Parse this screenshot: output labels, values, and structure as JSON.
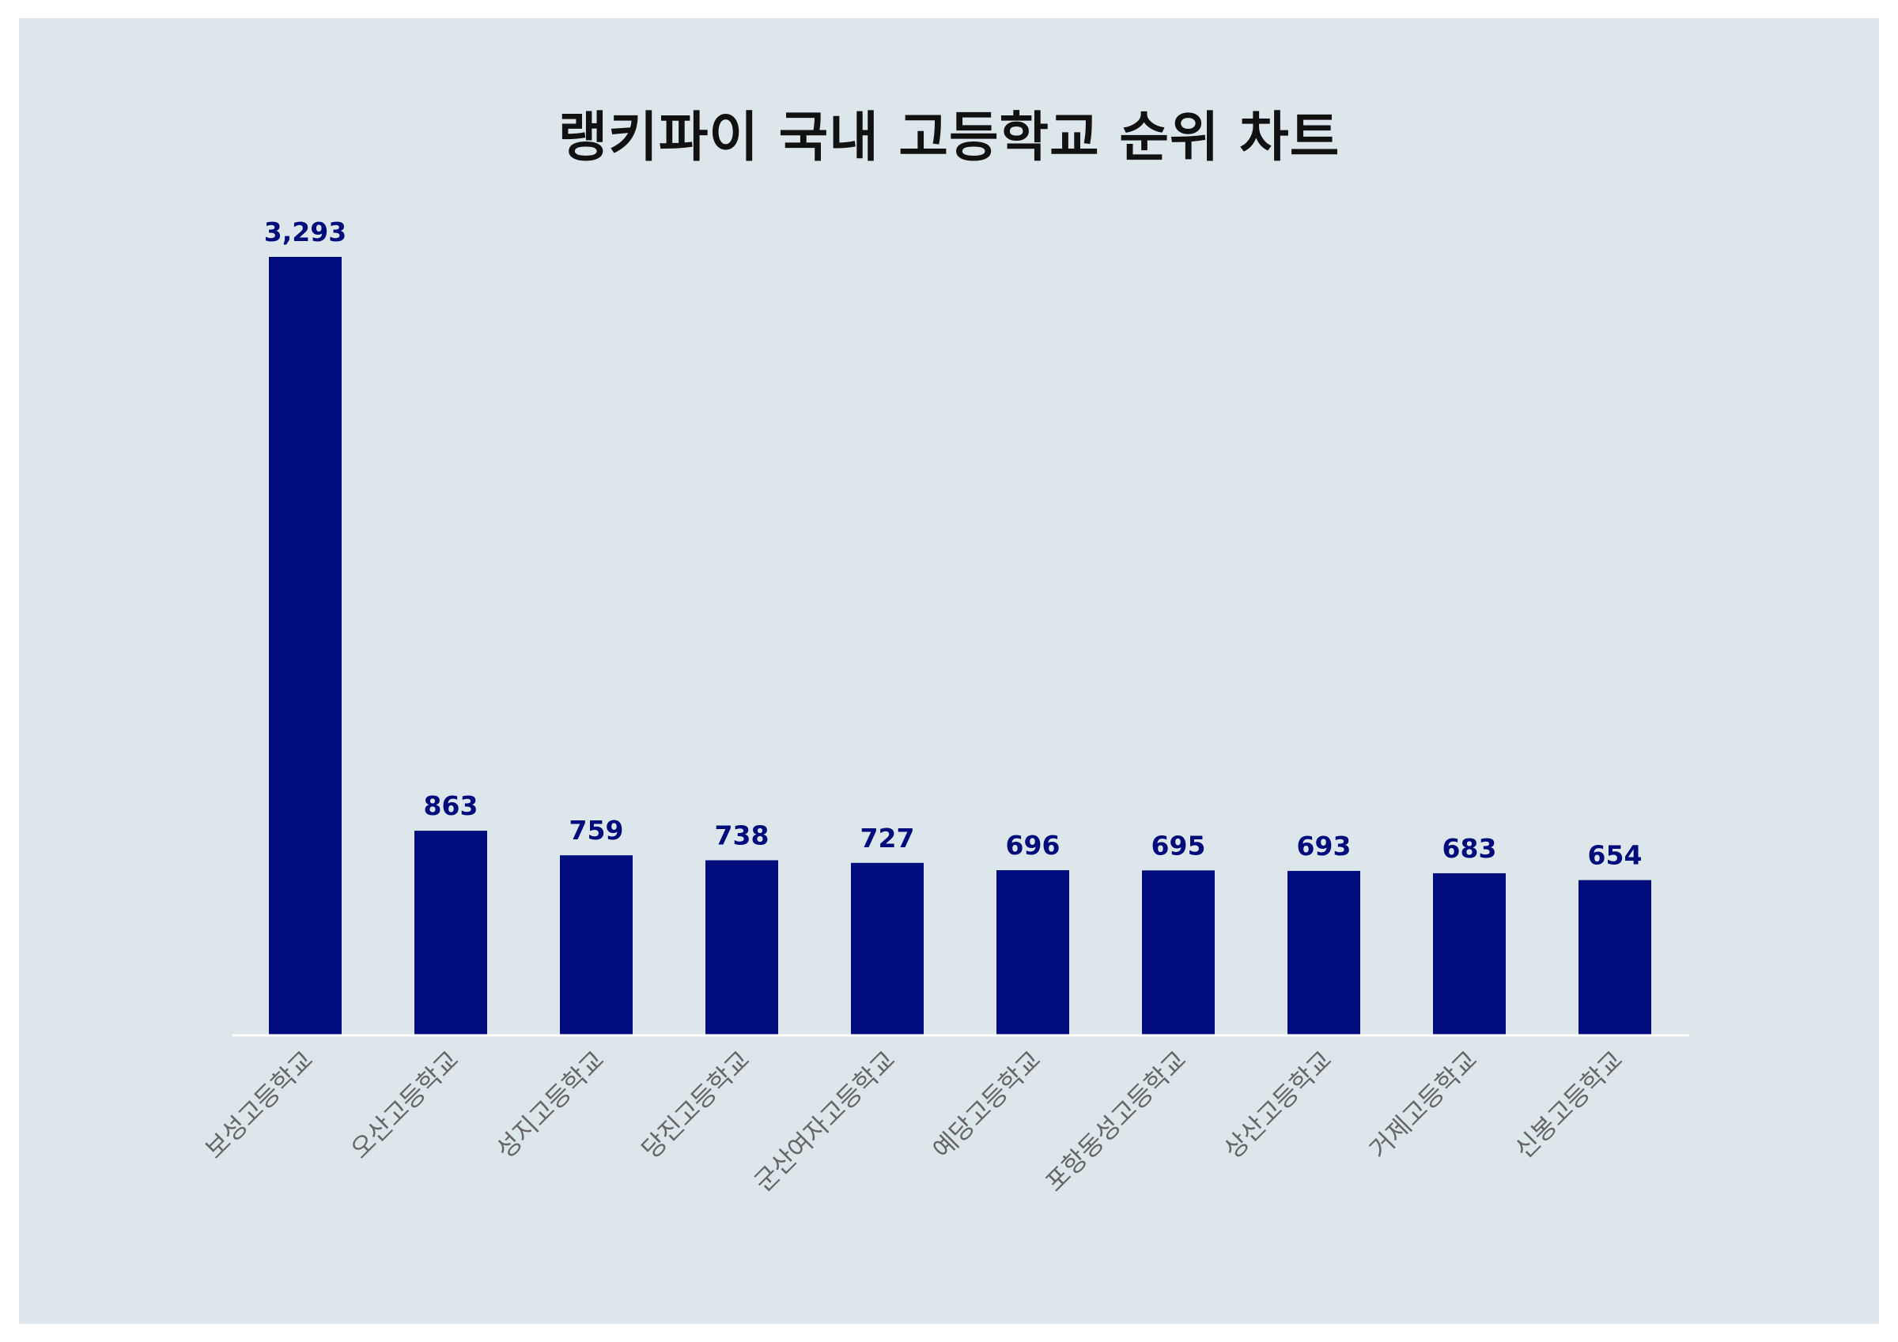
{
  "chart_data": {
    "type": "bar",
    "title": "랭키파이 국내 고등학교 순위 차트",
    "xlabel": "",
    "ylabel": "",
    "categories": [
      "보성고등학교",
      "오산고등학교",
      "성지고등학교",
      "당진고등학교",
      "군산여자고등학교",
      "예당고등학교",
      "포항동성고등학교",
      "상산고등학교",
      "거제고등학교",
      "신봉고등학교"
    ],
    "values": [
      3293,
      863,
      759,
      738,
      727,
      696,
      695,
      693,
      683,
      654
    ],
    "value_labels": [
      "3,293",
      "863",
      "759",
      "738",
      "727",
      "696",
      "695",
      "693",
      "683",
      "654"
    ],
    "ylim": [
      0,
      3293
    ],
    "grid": false,
    "legend": "none"
  },
  "colors": {
    "panel_background": "#dce6eb",
    "bar": "#000c7b",
    "value_label": "#000c7b",
    "tick_label": "#666666",
    "baseline": "#ffffff",
    "title": "#111111"
  }
}
